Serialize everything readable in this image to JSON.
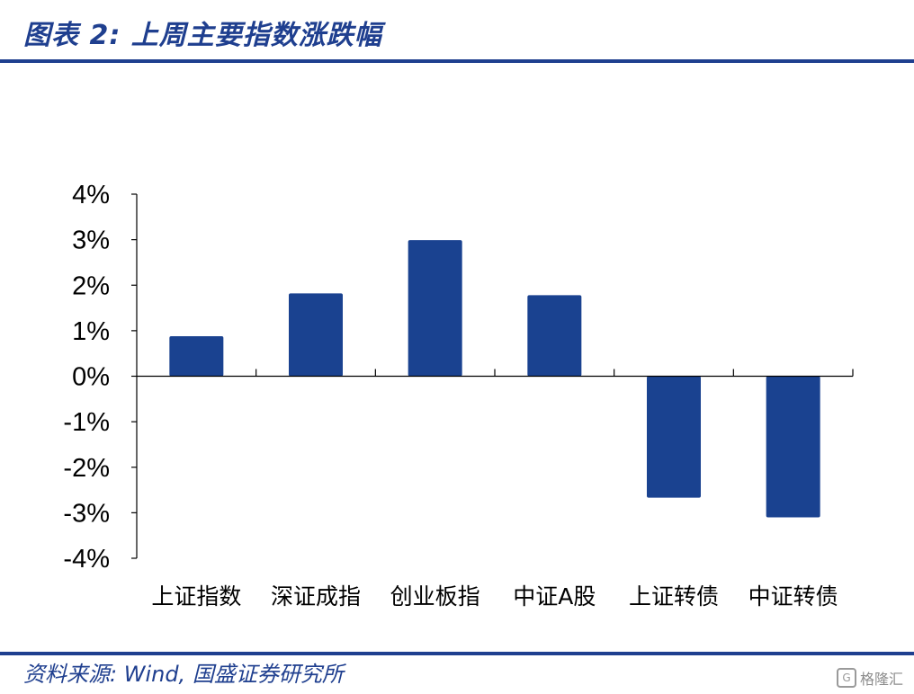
{
  "header": {
    "title": "图表 2:  上周主要指数涨跌幅"
  },
  "footer": {
    "source": "资料来源:  Wind,  国盛证券研究所"
  },
  "watermark": {
    "icon": "G",
    "text": "格隆汇"
  },
  "colors": {
    "accent": "#1f3f8f",
    "bar": "#1a4290",
    "axis": "#000000"
  },
  "chart_data": {
    "type": "bar",
    "categories": [
      "上证指数",
      "深证成指",
      "创业板指",
      "中证A股",
      "上证转债",
      "中证转债"
    ],
    "values": [
      0.88,
      1.82,
      2.99,
      1.78,
      -2.67,
      -3.1
    ],
    "unit": "%",
    "ylim": [
      -4,
      4
    ],
    "yticks": [
      4,
      3,
      2,
      1,
      0,
      -1,
      -2,
      -3,
      -4
    ],
    "ytick_labels": [
      "4%",
      "3%",
      "2%",
      "1%",
      "0%",
      "-1%",
      "-2%",
      "-3%",
      "-4%"
    ],
    "title": "",
    "xlabel": "",
    "ylabel": "",
    "grid": false,
    "legend": "none"
  }
}
